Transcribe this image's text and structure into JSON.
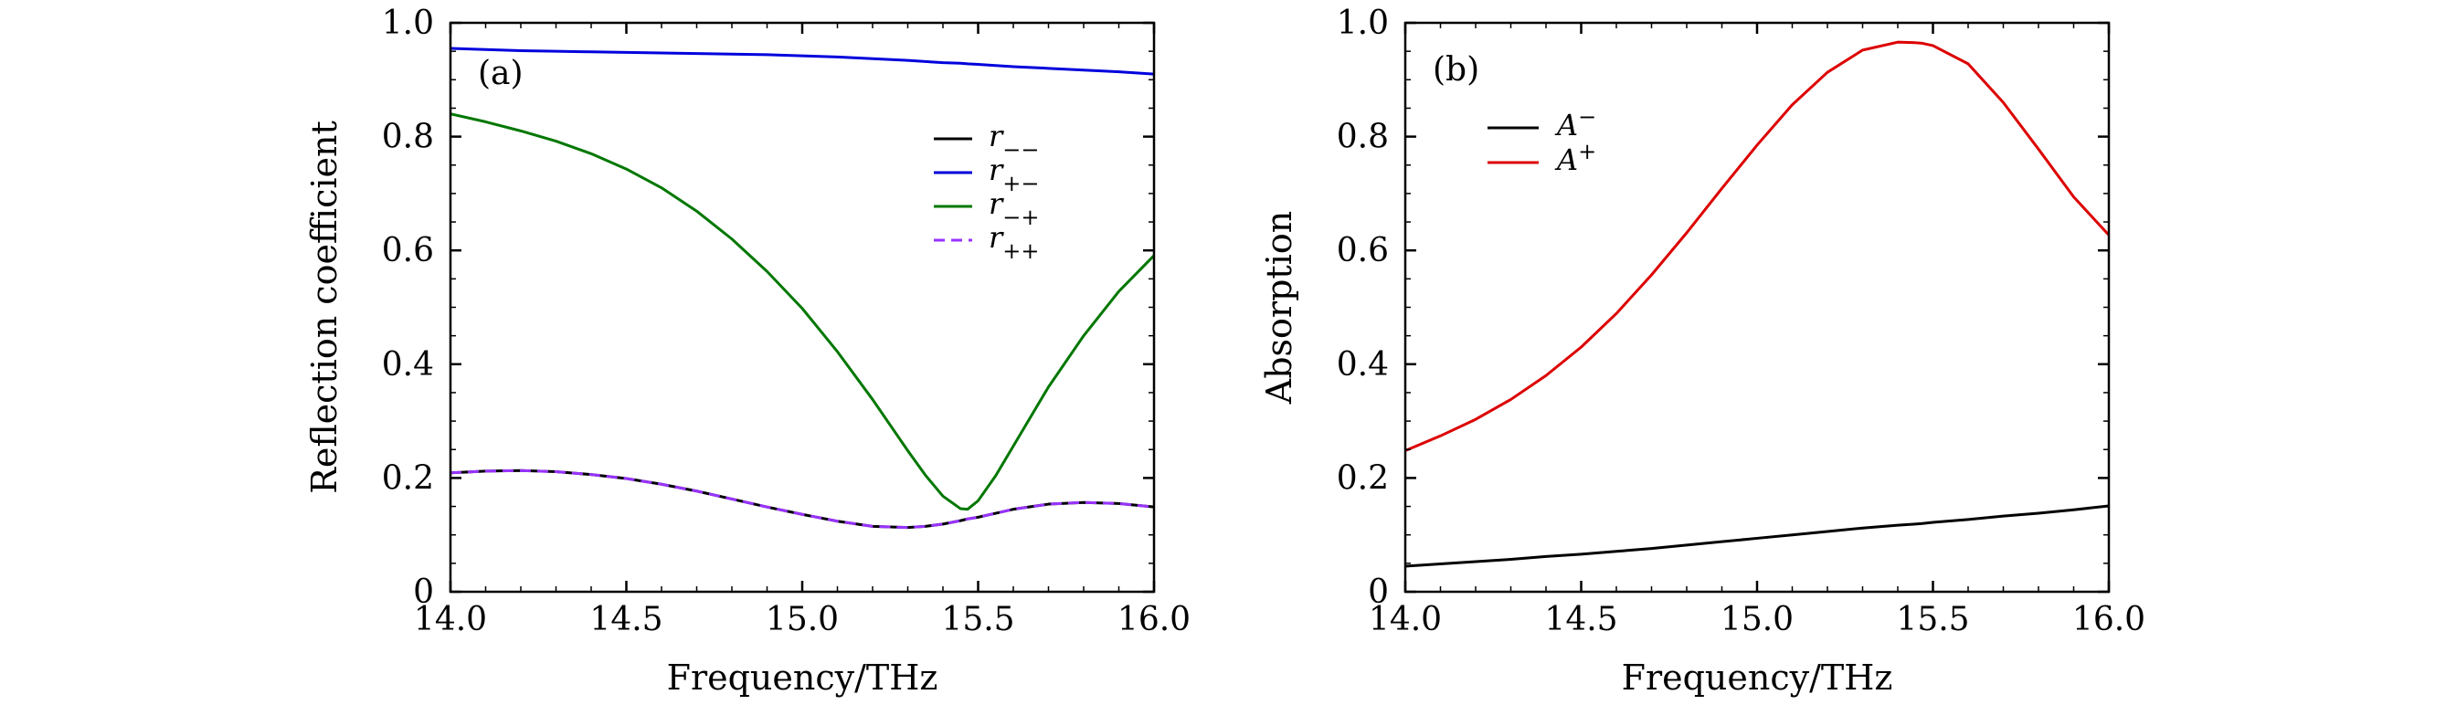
{
  "chart_data": [
    {
      "type": "line",
      "panel_label": "(a)",
      "xlabel": "Frequency/THz",
      "ylabel": "Reflection coefficient",
      "xlim": [
        14.0,
        16.0
      ],
      "ylim": [
        0,
        1.0
      ],
      "x_ticks": [
        "14.0",
        "14.5",
        "15.0",
        "15.5",
        "16.0"
      ],
      "y_ticks": [
        "0",
        "0.2",
        "0.4",
        "0.6",
        "0.8",
        "1.0"
      ],
      "grid": false,
      "legend_position": "upper-right",
      "x": [
        14.0,
        14.1,
        14.2,
        14.3,
        14.4,
        14.5,
        14.6,
        14.7,
        14.8,
        14.9,
        15.0,
        15.1,
        15.2,
        15.3,
        15.35,
        15.4,
        15.45,
        15.47,
        15.5,
        15.55,
        15.6,
        15.7,
        15.8,
        15.9,
        16.0
      ],
      "series": [
        {
          "name": "r",
          "sub": "−−",
          "color": "#000000",
          "dash": "solid",
          "values": [
            0.209,
            0.212,
            0.213,
            0.211,
            0.206,
            0.199,
            0.189,
            0.177,
            0.163,
            0.149,
            0.136,
            0.124,
            0.115,
            0.113,
            0.115,
            0.119,
            0.125,
            0.128,
            0.131,
            0.138,
            0.145,
            0.154,
            0.157,
            0.155,
            0.149
          ]
        },
        {
          "name": "r",
          "sub": "+−",
          "color": "#0000dd",
          "dash": "solid",
          "values": [
            0.955,
            0.953,
            0.951,
            0.95,
            0.949,
            0.948,
            0.947,
            0.946,
            0.945,
            0.944,
            0.942,
            0.94,
            0.937,
            0.934,
            0.932,
            0.93,
            0.929,
            0.928,
            0.927,
            0.925,
            0.923,
            0.92,
            0.917,
            0.914,
            0.91
          ]
        },
        {
          "name": "r",
          "sub": "−+",
          "color": "#007700",
          "dash": "solid",
          "values": [
            0.84,
            0.826,
            0.81,
            0.792,
            0.77,
            0.743,
            0.71,
            0.669,
            0.62,
            0.563,
            0.498,
            0.422,
            0.338,
            0.248,
            0.205,
            0.168,
            0.146,
            0.145,
            0.16,
            0.204,
            0.256,
            0.36,
            0.45,
            0.528,
            0.591
          ]
        },
        {
          "name": "r",
          "sub": "++",
          "color": "#9933ff",
          "dash": "dashed",
          "values": [
            0.209,
            0.212,
            0.213,
            0.211,
            0.206,
            0.199,
            0.189,
            0.177,
            0.163,
            0.149,
            0.136,
            0.124,
            0.115,
            0.113,
            0.115,
            0.119,
            0.125,
            0.128,
            0.131,
            0.138,
            0.145,
            0.154,
            0.157,
            0.155,
            0.149
          ]
        }
      ]
    },
    {
      "type": "line",
      "panel_label": "(b)",
      "xlabel": "Frequency/THz",
      "ylabel": "Absorption",
      "xlim": [
        14.0,
        16.0
      ],
      "ylim": [
        0,
        1.0
      ],
      "x_ticks": [
        "14.0",
        "14.5",
        "15.0",
        "15.5",
        "16.0"
      ],
      "y_ticks": [
        "0",
        "0.2",
        "0.4",
        "0.6",
        "0.8",
        "1.0"
      ],
      "grid": false,
      "legend_position": "upper-left",
      "x": [
        14.0,
        14.1,
        14.2,
        14.3,
        14.4,
        14.5,
        14.6,
        14.7,
        14.8,
        14.9,
        15.0,
        15.1,
        15.2,
        15.3,
        15.4,
        15.45,
        15.47,
        15.5,
        15.6,
        15.7,
        15.8,
        15.9,
        16.0
      ],
      "series": [
        {
          "name": "A",
          "sup": "−",
          "color": "#000000",
          "dash": "solid",
          "values": [
            0.045,
            0.049,
            0.053,
            0.057,
            0.062,
            0.066,
            0.071,
            0.076,
            0.082,
            0.088,
            0.094,
            0.1,
            0.106,
            0.112,
            0.117,
            0.119,
            0.12,
            0.122,
            0.127,
            0.133,
            0.138,
            0.144,
            0.151
          ]
        },
        {
          "name": "A",
          "sup": "+",
          "color": "#dd0000",
          "dash": "solid",
          "values": [
            0.248,
            0.274,
            0.303,
            0.338,
            0.38,
            0.43,
            0.489,
            0.557,
            0.631,
            0.709,
            0.785,
            0.856,
            0.913,
            0.952,
            0.966,
            0.965,
            0.964,
            0.96,
            0.928,
            0.86,
            0.778,
            0.694,
            0.627
          ]
        }
      ]
    }
  ]
}
